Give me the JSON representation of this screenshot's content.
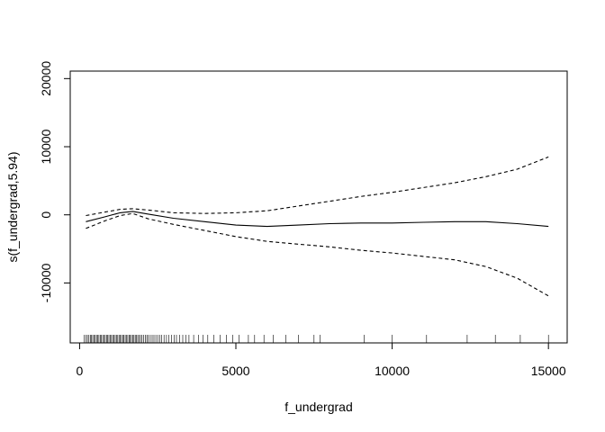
{
  "chart_data": {
    "type": "line",
    "title": "",
    "xlabel": "f_undergrad",
    "ylabel": "s(f_undergrad,5.94)",
    "xlim": [
      -300,
      15600
    ],
    "ylim": [
      -18800,
      21100
    ],
    "xticks": [
      0,
      5000,
      10000,
      15000
    ],
    "yticks": [
      -10000,
      0,
      10000,
      20000
    ],
    "xtick_labels": [
      "0",
      "5000",
      "10000",
      "15000"
    ],
    "ytick_labels": [
      "-10000",
      "0",
      "10000",
      "20000"
    ],
    "grid": false,
    "legend": "none",
    "series": [
      {
        "role": "estimate",
        "style": "solid",
        "x": [
          200,
          800,
          1300,
          1700,
          2200,
          3000,
          4000,
          5000,
          6000,
          7000,
          8000,
          9000,
          10000,
          11000,
          12000,
          13000,
          14000,
          15000
        ],
        "y": [
          -1000,
          -300,
          300,
          500,
          100,
          -500,
          -1000,
          -1500,
          -1700,
          -1500,
          -1300,
          -1200,
          -1200,
          -1100,
          -1000,
          -1000,
          -1300,
          -1700
        ]
      },
      {
        "role": "upper-band",
        "style": "dashed",
        "x": [
          200,
          800,
          1300,
          1700,
          2200,
          3000,
          4000,
          5000,
          6000,
          7000,
          8000,
          9000,
          10000,
          11000,
          12000,
          13000,
          14000,
          15000
        ],
        "y": [
          -100,
          400,
          800,
          900,
          700,
          300,
          200,
          300,
          600,
          1300,
          2000,
          2700,
          3300,
          4000,
          4700,
          5600,
          6700,
          8500
        ]
      },
      {
        "role": "lower-band",
        "style": "dashed",
        "x": [
          200,
          800,
          1300,
          1700,
          2200,
          3000,
          4000,
          5000,
          6000,
          7000,
          8000,
          9000,
          10000,
          11000,
          12000,
          13000,
          14000,
          15000
        ],
        "y": [
          -2000,
          -900,
          -100,
          200,
          -600,
          -1400,
          -2300,
          -3200,
          -3900,
          -4300,
          -4700,
          -5200,
          -5600,
          -6100,
          -6600,
          -7600,
          -9300,
          -11900
        ]
      }
    ],
    "rug": [
      150,
      200,
      250,
      300,
      350,
      380,
      420,
      460,
      500,
      540,
      580,
      620,
      660,
      700,
      740,
      780,
      820,
      860,
      900,
      940,
      980,
      1020,
      1060,
      1100,
      1140,
      1180,
      1220,
      1260,
      1300,
      1340,
      1380,
      1420,
      1460,
      1500,
      1540,
      1580,
      1620,
      1660,
      1700,
      1740,
      1780,
      1820,
      1860,
      1900,
      1950,
      2000,
      2050,
      2100,
      2150,
      2200,
      2260,
      2320,
      2380,
      2440,
      2500,
      2560,
      2620,
      2700,
      2780,
      2860,
      2940,
      3020,
      3100,
      3200,
      3300,
      3400,
      3500,
      3650,
      3800,
      3950,
      4100,
      4300,
      4500,
      4700,
      4900,
      5100,
      5400,
      5600,
      5900,
      6200,
      6600,
      7000,
      7500,
      7700,
      9100,
      10000,
      11100,
      12400,
      13300,
      14100,
      15000
    ]
  }
}
